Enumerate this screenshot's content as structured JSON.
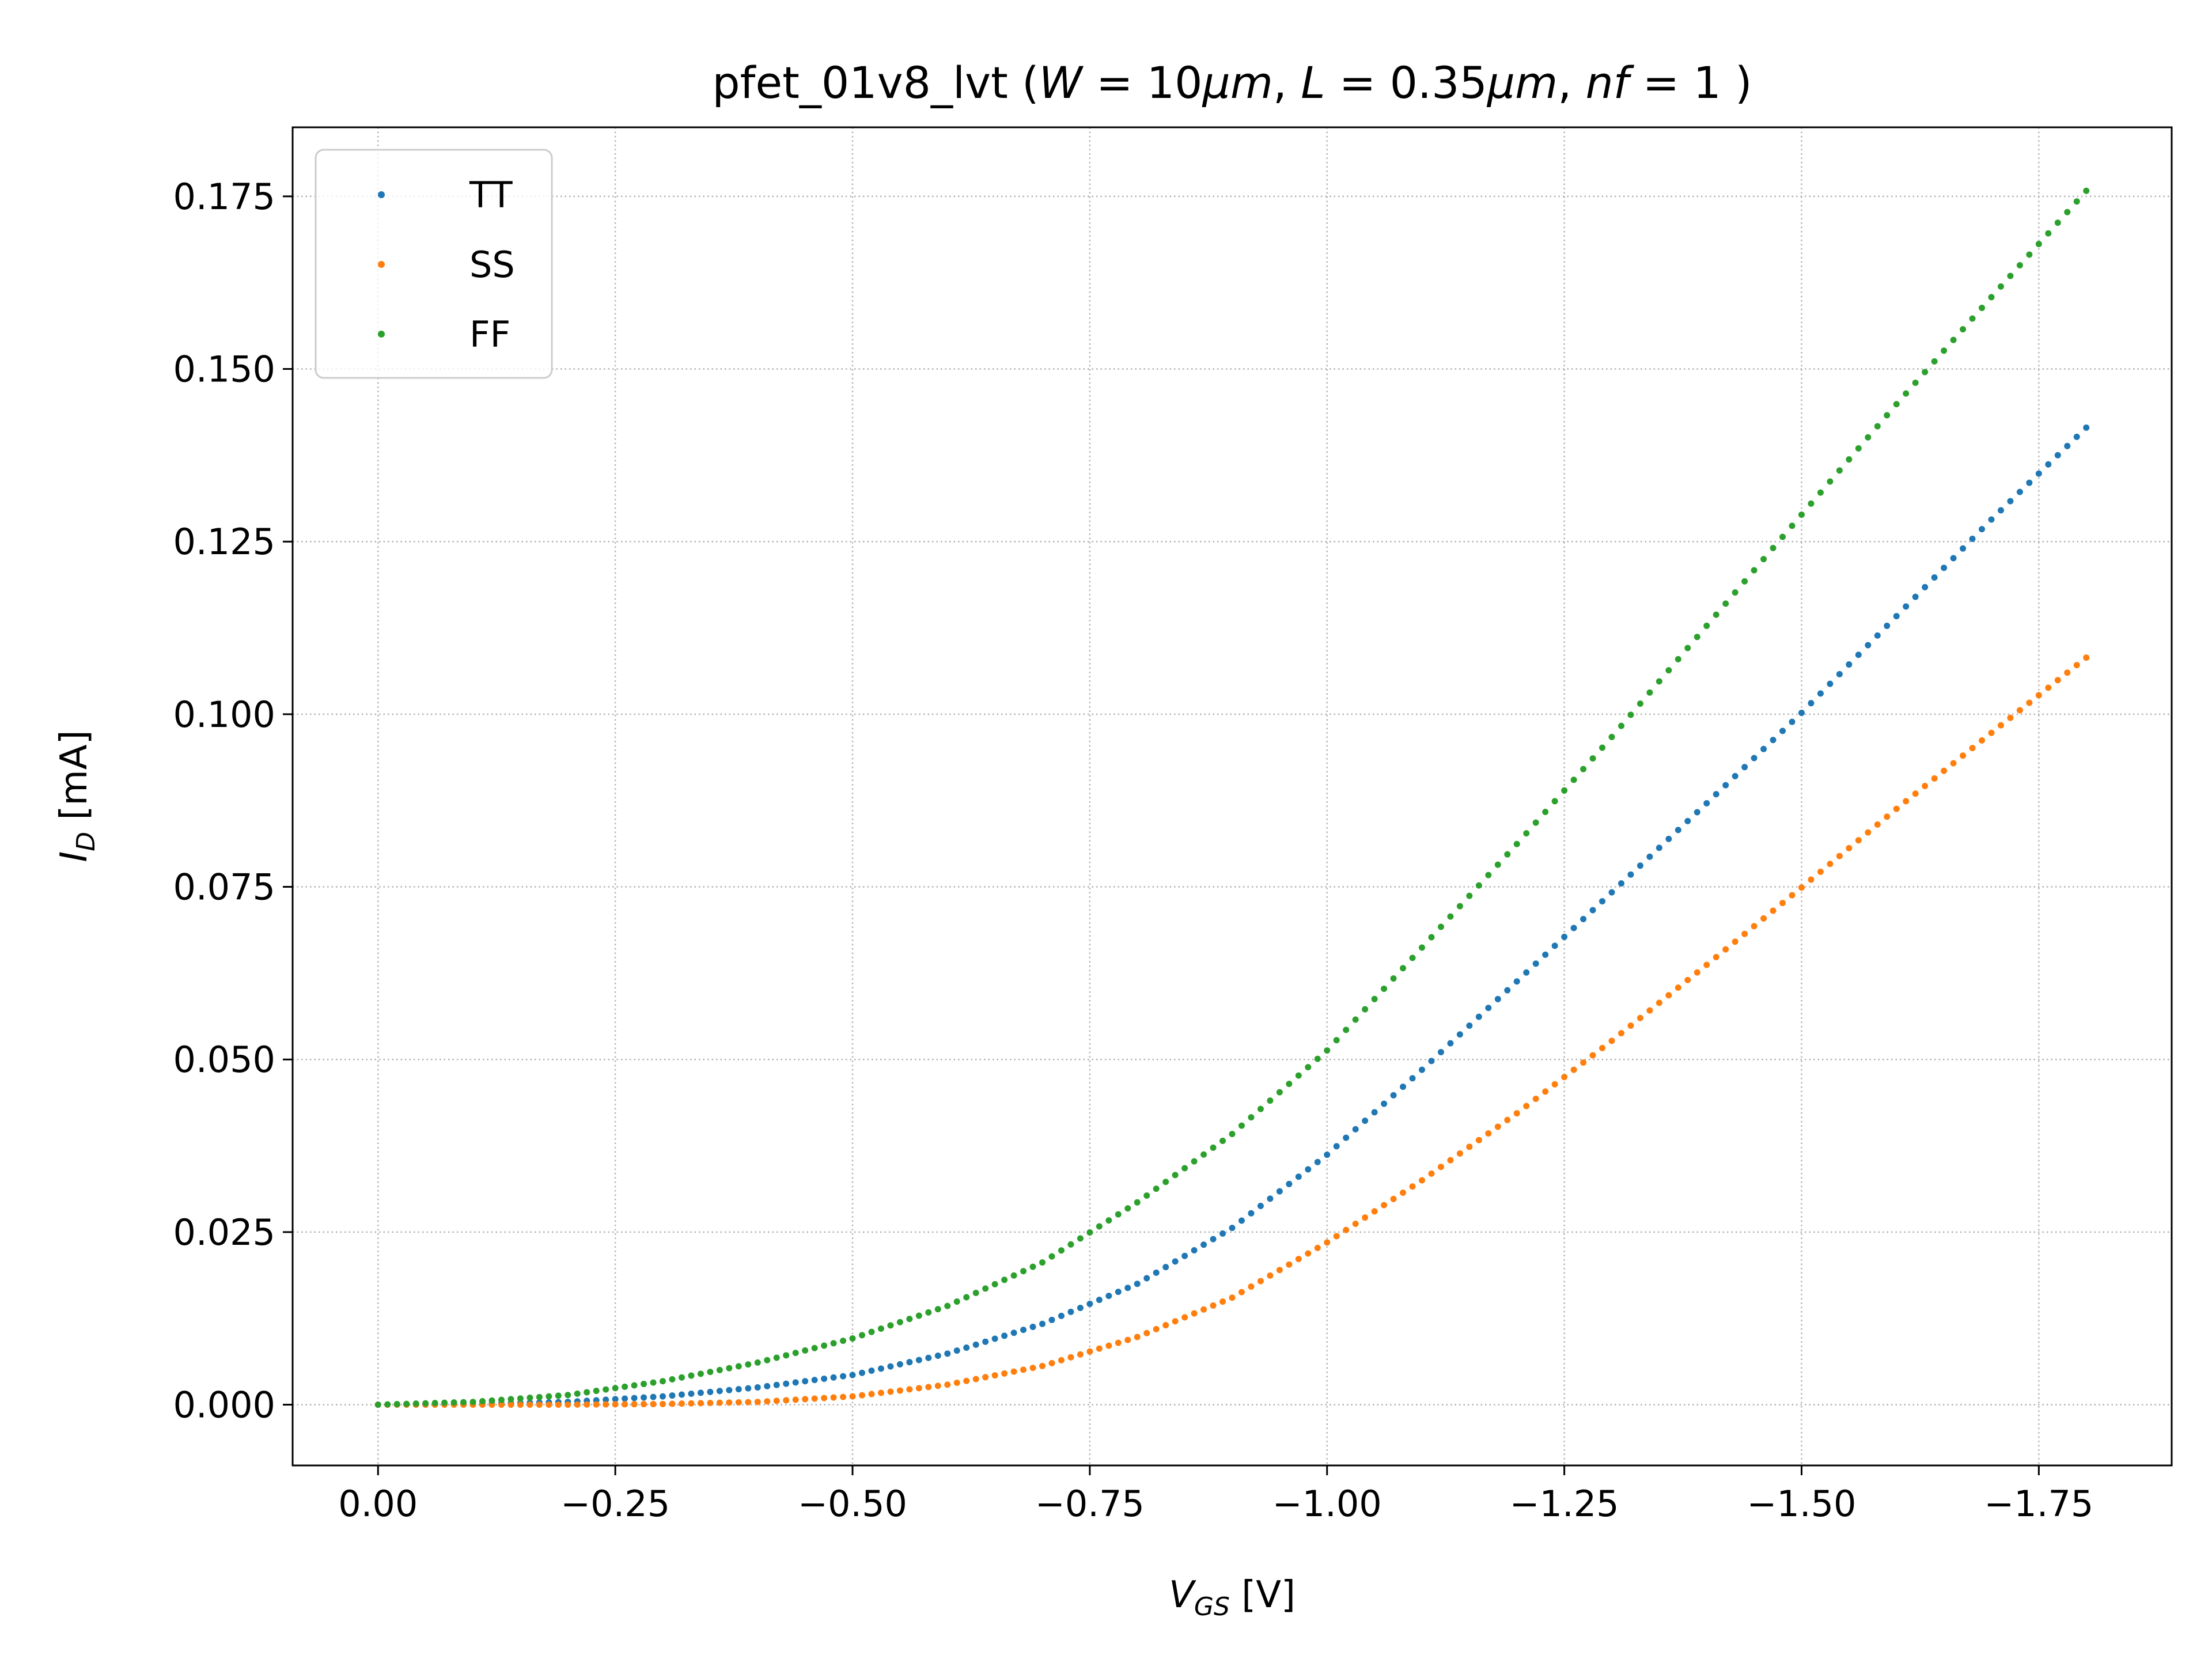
{
  "chart_data": {
    "type": "scatter",
    "title": {
      "prefix": "pfet_01v8_lvt (",
      "W_sym": "W",
      "W_val": " = 10",
      "W_unit": "μm",
      "sep1": ", ",
      "L_sym": "L",
      "L_val": " = 0.35",
      "L_unit": "μm",
      "sep2": ", ",
      "nf_sym": "nf",
      "nf_val": " = 1",
      "suffix": " )"
    },
    "xlabel": {
      "main": "V",
      "sub": "GS",
      "unit": " [V]"
    },
    "ylabel": {
      "main": "I",
      "sub": "D",
      "unit": " [mA]"
    },
    "xlim": [
      0.09,
      -1.89
    ],
    "ylim": [
      -0.0088,
      0.185
    ],
    "x_ticks": [
      {
        "v": 0.0,
        "label": "0.00"
      },
      {
        "v": -0.25,
        "label": "−0.25"
      },
      {
        "v": -0.5,
        "label": "−0.50"
      },
      {
        "v": -0.75,
        "label": "−0.75"
      },
      {
        "v": -1.0,
        "label": "−1.00"
      },
      {
        "v": -1.25,
        "label": "−1.25"
      },
      {
        "v": -1.5,
        "label": "−1.50"
      },
      {
        "v": -1.75,
        "label": "−1.75"
      }
    ],
    "y_ticks": [
      {
        "v": 0.0,
        "label": "0.000"
      },
      {
        "v": 0.025,
        "label": "0.025"
      },
      {
        "v": 0.05,
        "label": "0.050"
      },
      {
        "v": 0.075,
        "label": "0.075"
      },
      {
        "v": 0.1,
        "label": "0.100"
      },
      {
        "v": 0.125,
        "label": "0.125"
      },
      {
        "v": 0.15,
        "label": "0.150"
      },
      {
        "v": 0.175,
        "label": "0.175"
      }
    ],
    "grid": true,
    "legend_position": "top-left",
    "x": [
      0.0,
      -0.1,
      -0.2,
      -0.3,
      -0.4,
      -0.5,
      -0.6,
      -0.7,
      -0.8,
      -0.9,
      -1.0,
      -1.1,
      -1.2,
      -1.3,
      -1.4,
      -1.5,
      -1.6,
      -1.7,
      -1.8
    ],
    "series": [
      {
        "name": "TT",
        "color": "#1f77b4",
        "y": [
          0.0,
          0.0001,
          0.0004,
          0.0012,
          0.0025,
          0.0043,
          0.0074,
          0.0117,
          0.0175,
          0.0256,
          0.0362,
          0.0485,
          0.0613,
          0.0742,
          0.0871,
          0.1002,
          0.1142,
          0.1282,
          0.1415
        ]
      },
      {
        "name": "SS",
        "color": "#ff7f0e",
        "y": [
          0.0,
          0.0,
          0.0,
          0.0001,
          0.0004,
          0.0012,
          0.0029,
          0.0056,
          0.0098,
          0.0155,
          0.0235,
          0.0325,
          0.0422,
          0.0527,
          0.0637,
          0.0749,
          0.0863,
          0.0973,
          0.1082
        ]
      },
      {
        "name": "FF",
        "color": "#2ca02c",
        "y": [
          0.0,
          0.0004,
          0.0014,
          0.0034,
          0.0061,
          0.0096,
          0.0143,
          0.0206,
          0.0293,
          0.0392,
          0.0513,
          0.0662,
          0.0812,
          0.0967,
          0.1128,
          0.1289,
          0.1449,
          0.1604,
          0.1758
        ]
      }
    ]
  }
}
